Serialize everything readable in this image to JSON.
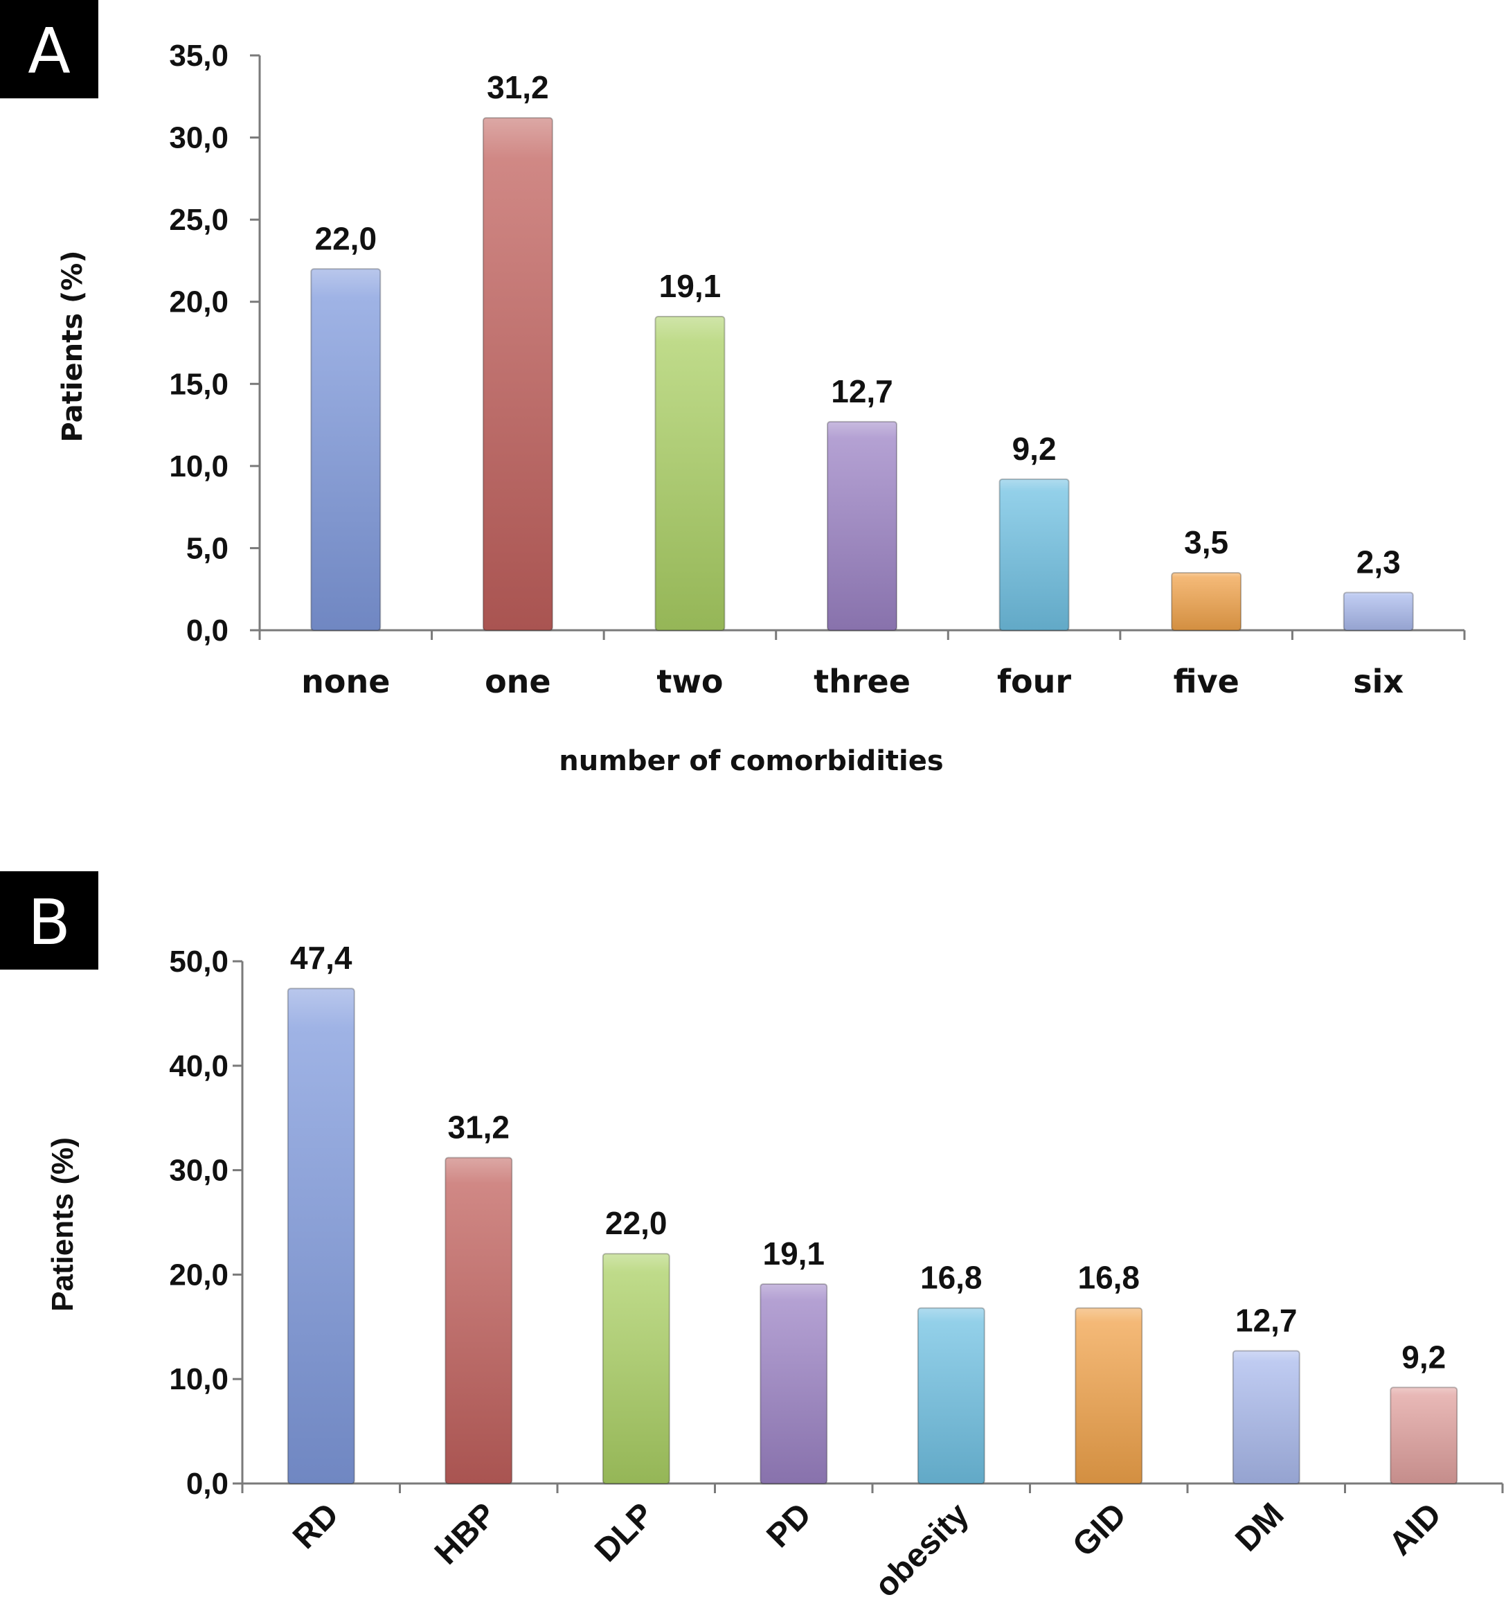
{
  "colors": {
    "blue": "#7f99dc",
    "red": "#c0605c",
    "green": "#a9cf63",
    "purple": "#9b82c4",
    "cyan": "#6fc0e2",
    "orange": "#f0a24a",
    "lightblue": "#a9b9ec",
    "pink": "#e0a09e"
  },
  "chart_data": [
    {
      "panel": "A",
      "type": "bar",
      "xlabel": "number of comorbidities",
      "ylabel": "Patients (%)",
      "ylim": [
        0,
        35
      ],
      "yticks": [
        "0,0",
        "5,0",
        "10,0",
        "15,0",
        "20,0",
        "25,0",
        "30,0",
        "35,0"
      ],
      "categories": [
        "none",
        "one",
        "two",
        "three",
        "four",
        "five",
        "six"
      ],
      "values": [
        22.0,
        31.2,
        19.1,
        12.7,
        9.2,
        3.5,
        2.3
      ],
      "value_labels": [
        "22,0",
        "31,2",
        "19,1",
        "12,7",
        "9,2",
        "3,5",
        "2,3"
      ],
      "bar_colors": [
        "#7f99dc",
        "#c0605c",
        "#a9cf63",
        "#9b82c4",
        "#6fc0e2",
        "#f0a24a",
        "#a9b9ec"
      ],
      "grid": false
    },
    {
      "panel": "B",
      "type": "bar",
      "xlabel": "",
      "ylabel": "Patients (%)",
      "ylim": [
        0,
        50
      ],
      "yticks": [
        "0,0",
        "10,0",
        "20,0",
        "30,0",
        "40,0",
        "50,0"
      ],
      "categories": [
        "RD",
        "HBP",
        "DLP",
        "PD",
        "obesity",
        "GID",
        "DM",
        "AID"
      ],
      "values": [
        47.4,
        31.2,
        22.0,
        19.1,
        16.8,
        16.8,
        12.7,
        9.2
      ],
      "value_labels": [
        "47,4",
        "31,2",
        "22,0",
        "19,1",
        "16,8",
        "16,8",
        "12,7",
        "9,2"
      ],
      "bar_colors": [
        "#7f99dc",
        "#c0605c",
        "#a9cf63",
        "#9b82c4",
        "#6fc0e2",
        "#f0a24a",
        "#a9b9ec",
        "#e0a09e"
      ],
      "grid": false
    }
  ]
}
